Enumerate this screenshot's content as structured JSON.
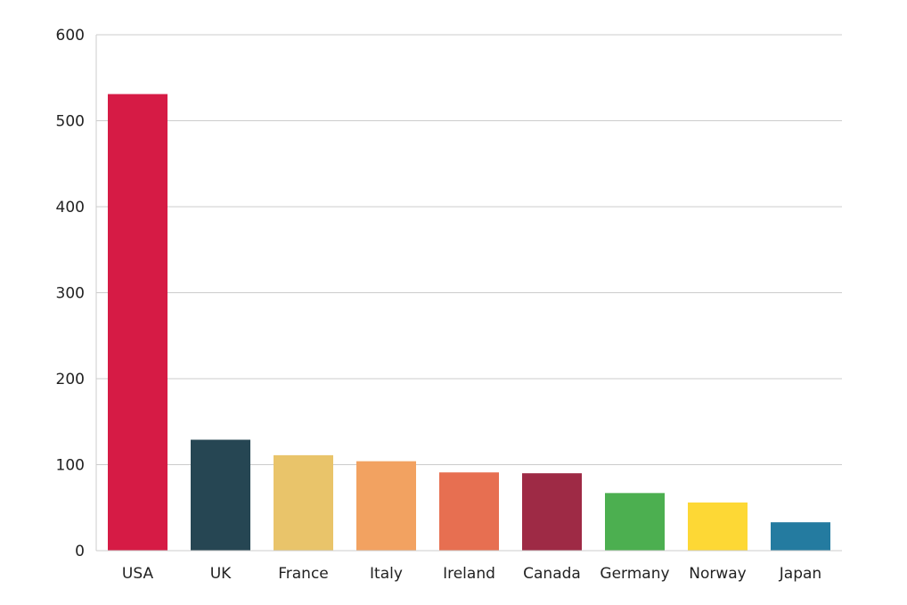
{
  "chart_data": {
    "type": "bar",
    "title": "",
    "xlabel": "",
    "ylabel": "",
    "categories": [
      "USA",
      "UK",
      "France",
      "Italy",
      "Ireland",
      "Canada",
      "Germany",
      "Norway",
      "Japan"
    ],
    "values": [
      531,
      129,
      111,
      104,
      91,
      90,
      67,
      56,
      33
    ],
    "colors": [
      "#d61b45",
      "#264653",
      "#e9c46a",
      "#f2a261",
      "#e76f51",
      "#9e2a45",
      "#4caf50",
      "#fdd835",
      "#247ba0"
    ],
    "ylim": [
      0,
      600
    ],
    "yticks": [
      0,
      100,
      200,
      300,
      400,
      500,
      600
    ],
    "grid": true,
    "legend": "none"
  }
}
